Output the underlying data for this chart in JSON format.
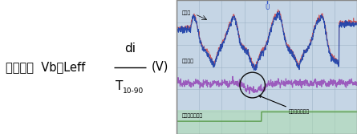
{
  "left_bg": "#ffffff",
  "osc_bg": "#c5d5e5",
  "osc_grid_color": "#9ab0c4",
  "border_color": "#888888",
  "signal_color_blue": "#2244aa",
  "signal_color_red": "#cc3333",
  "core_voltage_color": "#9955bb",
  "error_signal_color": "#559944",
  "error_bg_color": "#aaddaa",
  "circle_color": "#111111",
  "label_signal": "信号線",
  "label_core": "コア電圧",
  "label_error": "エラー検出信号",
  "label_annotation": "コア電圧が低下",
  "u_marker": "U",
  "formula_main": "《数式》  Vb＝Leff",
  "formula_di": "di",
  "formula_T": "T",
  "formula_sub": "10-90",
  "formula_V": "(V)"
}
